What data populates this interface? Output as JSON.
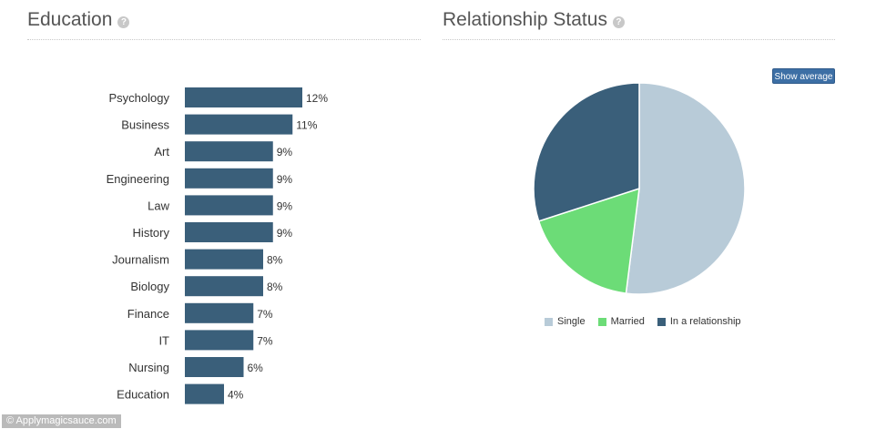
{
  "education": {
    "title": "Education",
    "help_icon": "?"
  },
  "relationship": {
    "title": "Relationship Status",
    "help_icon": "?",
    "show_average_label": "Show average"
  },
  "watermark": "© Applymagicsauce.com",
  "chart_data": [
    {
      "type": "bar",
      "orientation": "horizontal",
      "title": "Education",
      "categories": [
        "Psychology",
        "Business",
        "Art",
        "Engineering",
        "Law",
        "History",
        "Journalism",
        "Biology",
        "Finance",
        "IT",
        "Nursing",
        "Education"
      ],
      "values": [
        12,
        11,
        9,
        9,
        9,
        9,
        8,
        8,
        7,
        7,
        6,
        4
      ],
      "value_labels": [
        "12%",
        "11%",
        "9%",
        "9%",
        "9%",
        "9%",
        "8%",
        "8%",
        "7%",
        "7%",
        "6%",
        "4%"
      ],
      "unit": "%",
      "color": "#3a5f7a",
      "grid": false
    },
    {
      "type": "pie",
      "title": "Relationship Status",
      "labels": [
        "Single",
        "Married",
        "In a relationship"
      ],
      "values": [
        52,
        18,
        30
      ],
      "colors": [
        "#b8cbd8",
        "#6cdc77",
        "#3a5f7a"
      ],
      "legend_position": "bottom"
    }
  ]
}
